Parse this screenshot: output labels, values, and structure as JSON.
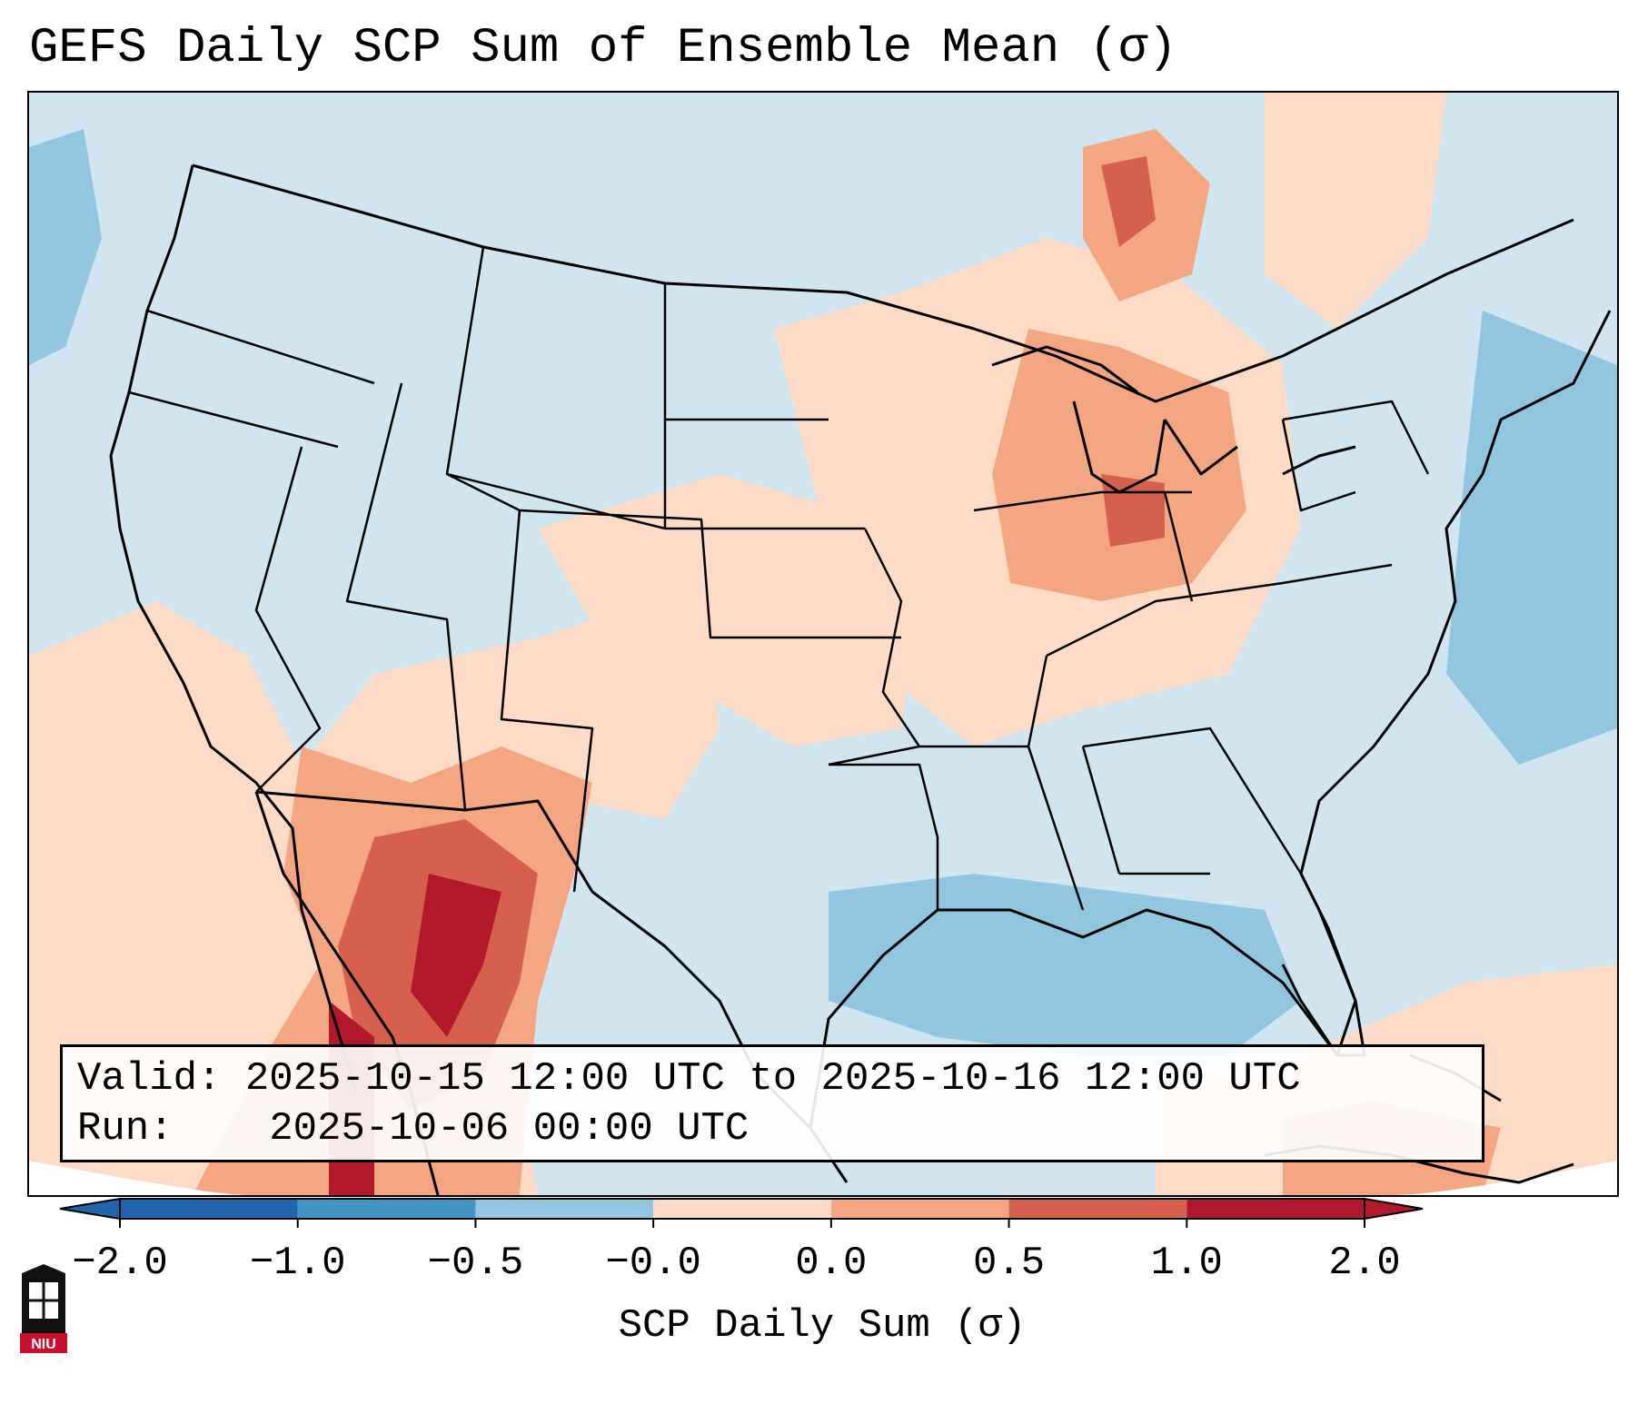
{
  "title": "GEFS Daily SCP Sum of Ensemble Mean (σ)",
  "info": {
    "valid_label": "Valid:",
    "valid_value": "2025-10-15 12:00 UTC to 2025-10-16 12:00 UTC",
    "run_label": "Run:",
    "run_value": "2025-10-06 00:00 UTC"
  },
  "colorbar": {
    "label": "SCP Daily Sum (σ)",
    "tick_labels": [
      "−2.0",
      "−1.0",
      "−0.5",
      "−0.0",
      "0.0",
      "0.5",
      "1.0",
      "2.0"
    ],
    "colors": [
      "#2166ac",
      "#4393c3",
      "#92c5de",
      "#d1e5f0",
      "#fddbc7",
      "#f4a582",
      "#d6604d",
      "#b2182b"
    ]
  },
  "map": {
    "fill_anomalies": [
      {
        "region": "Southwest / Northern Mexico",
        "level": 1.5
      },
      {
        "region": "Baja California",
        "level": 1.0
      },
      {
        "region": "Upper Midwest / Great Lakes",
        "level": 0.75
      },
      {
        "region": "Central Plains",
        "level": 0.4
      },
      {
        "region": "Western Atlantic",
        "level": -0.75
      },
      {
        "region": "Gulf of Mexico",
        "level": -0.75
      },
      {
        "region": "Caribbean",
        "level": 0.75
      }
    ]
  },
  "logo": {
    "name": "NIU"
  }
}
